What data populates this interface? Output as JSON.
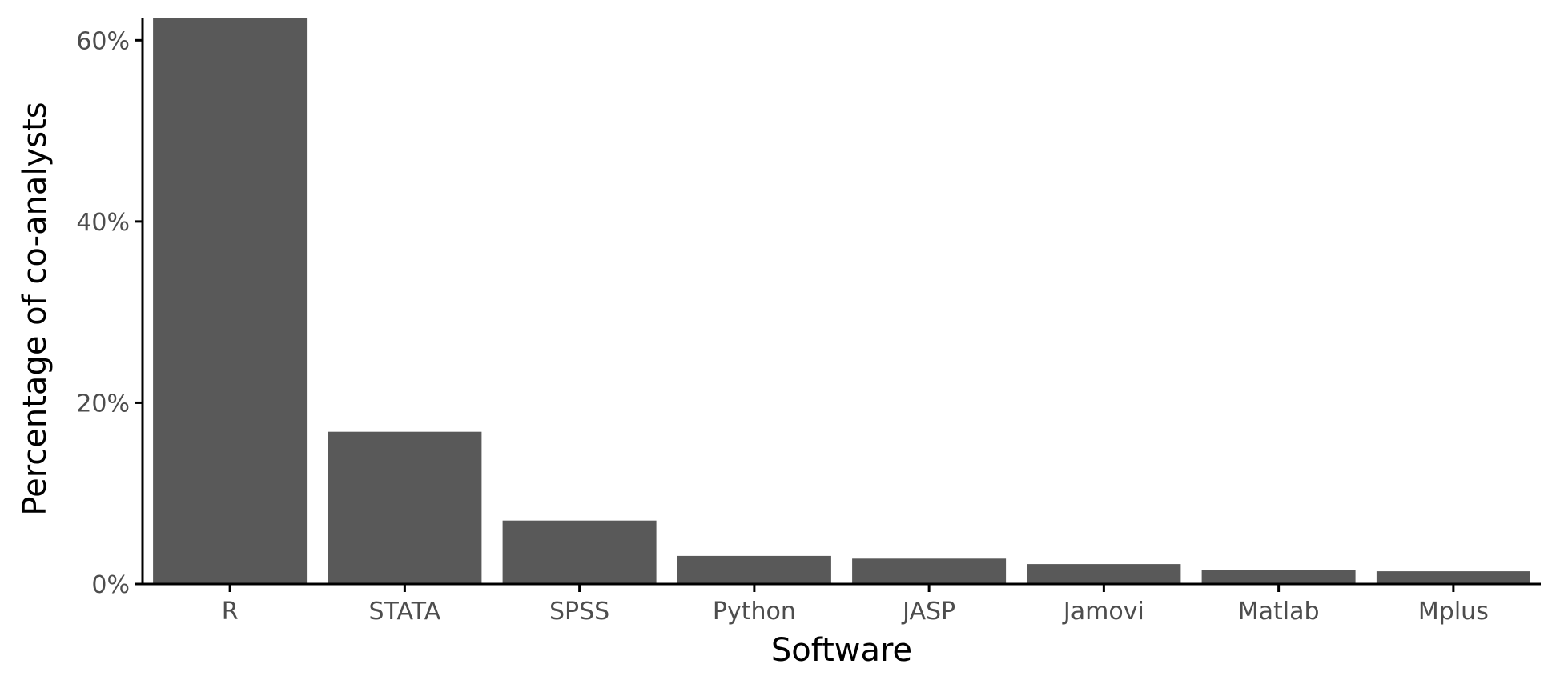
{
  "chart_data": {
    "type": "bar",
    "categories": [
      "R",
      "STATA",
      "SPSS",
      "Python",
      "JASP",
      "Jamovi",
      "Matlab",
      "Mplus"
    ],
    "values": [
      62.5,
      16.8,
      7.0,
      3.1,
      2.8,
      2.2,
      1.5,
      1.4
    ],
    "xlabel": "Software",
    "ylabel": "Percentage of co-analysts",
    "ylim": [
      0,
      62.5
    ],
    "yticks": [
      0,
      20,
      40,
      60
    ],
    "ytick_labels": [
      "0%",
      "20%",
      "40%",
      "60%"
    ],
    "grid": false,
    "bar_color": "#595959",
    "axis_color": "#000000"
  }
}
